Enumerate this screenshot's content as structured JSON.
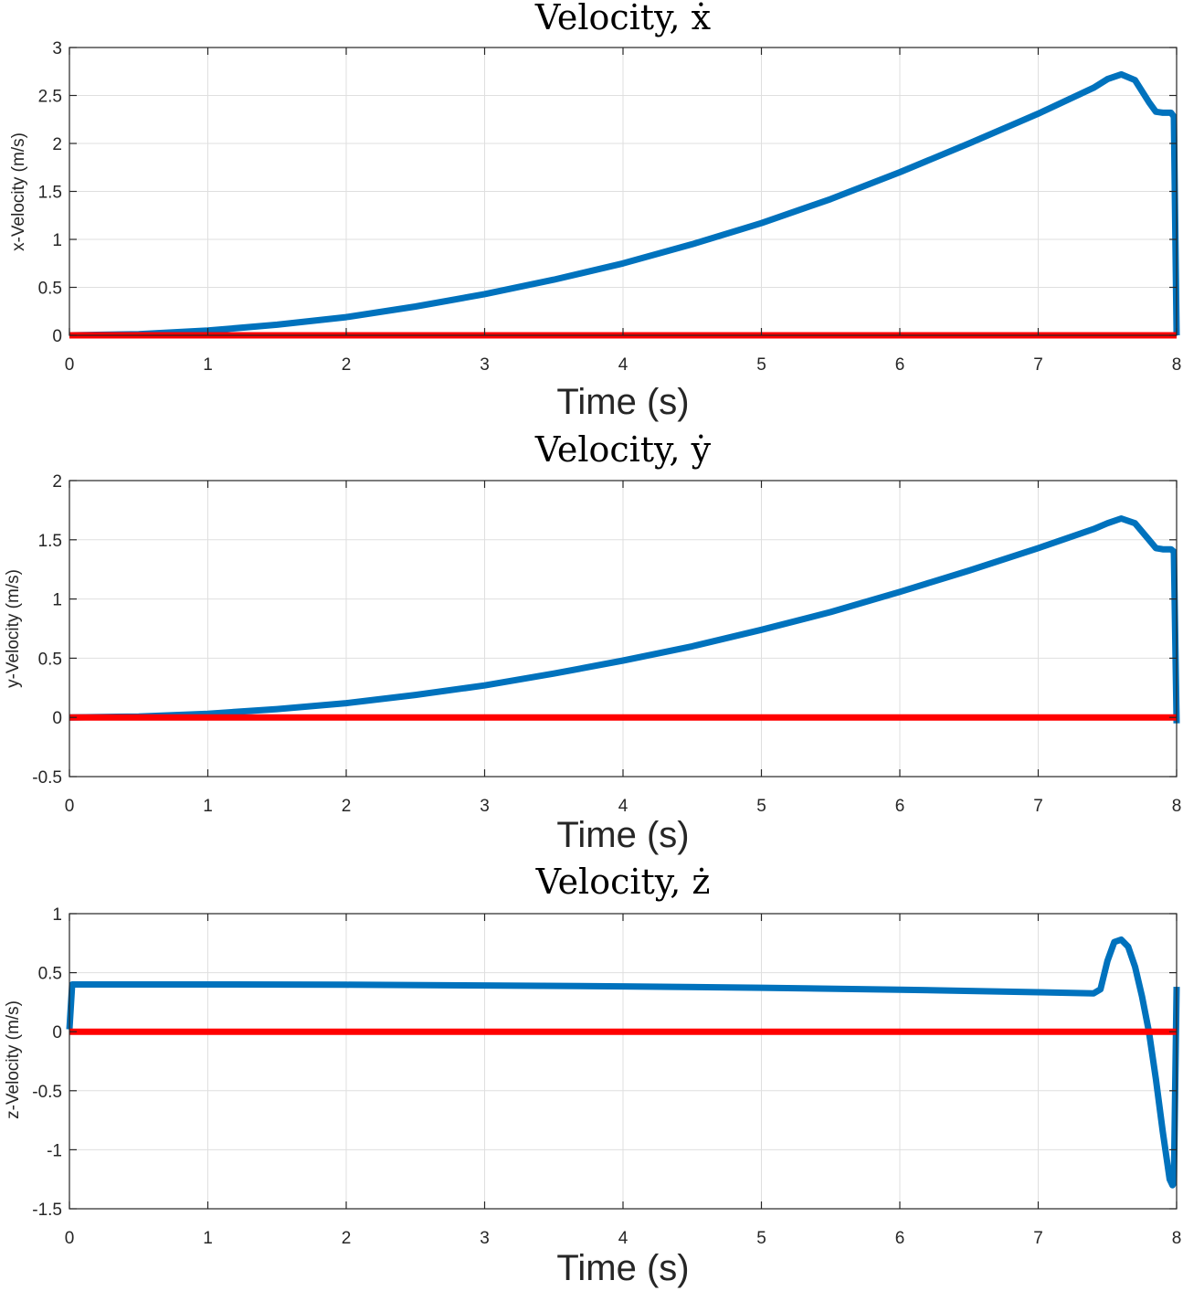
{
  "chart_data": [
    {
      "type": "line",
      "title": "Velocity, ẋ",
      "xlabel": "Time (s)",
      "ylabel": "x-Velocity (m/s)",
      "xlim": [
        0,
        8
      ],
      "ylim": [
        0,
        3
      ],
      "xticks": [
        0,
        1,
        2,
        3,
        4,
        5,
        6,
        7,
        8
      ],
      "yticks": [
        0,
        0.5,
        1,
        1.5,
        2,
        2.5,
        3
      ],
      "ytick_labels": [
        "0",
        "0.5",
        "1",
        "1.5",
        "2",
        "2.5",
        "3"
      ],
      "grid": true,
      "series": [
        {
          "color": "#0072bd",
          "x": [
            0,
            0.5,
            1,
            1.5,
            2,
            2.5,
            3,
            3.5,
            4,
            4.5,
            5,
            5.5,
            6,
            6.5,
            7,
            7.4,
            7.5,
            7.6,
            7.7,
            7.8,
            7.85,
            7.9,
            7.96,
            7.98,
            8.0
          ],
          "y": [
            0,
            0.012,
            0.05,
            0.11,
            0.19,
            0.3,
            0.43,
            0.58,
            0.75,
            0.95,
            1.17,
            1.42,
            1.7,
            2.0,
            2.31,
            2.58,
            2.67,
            2.72,
            2.66,
            2.43,
            2.33,
            2.32,
            2.32,
            2.28,
            0.0
          ]
        },
        {
          "color": "#ff0000",
          "x": [
            0,
            8
          ],
          "y": [
            0,
            0
          ]
        }
      ]
    },
    {
      "type": "line",
      "title": "Velocity, ẏ",
      "xlabel": "Time (s)",
      "ylabel": "y-Velocity (m/s)",
      "xlim": [
        0,
        8
      ],
      "ylim": [
        -0.5,
        2
      ],
      "xticks": [
        0,
        1,
        2,
        3,
        4,
        5,
        6,
        7,
        8
      ],
      "yticks": [
        -0.5,
        0,
        0.5,
        1,
        1.5,
        2
      ],
      "ytick_labels": [
        "-0.5",
        "0",
        "0.5",
        "1",
        "1.5",
        "2"
      ],
      "grid": true,
      "series": [
        {
          "color": "#0072bd",
          "x": [
            0,
            0.5,
            1,
            1.5,
            2,
            2.5,
            3,
            3.5,
            4,
            4.5,
            5,
            5.5,
            6,
            6.5,
            7,
            7.4,
            7.5,
            7.6,
            7.7,
            7.8,
            7.85,
            7.9,
            7.96,
            7.98,
            8.0
          ],
          "y": [
            0,
            0.008,
            0.031,
            0.07,
            0.12,
            0.19,
            0.27,
            0.37,
            0.48,
            0.6,
            0.74,
            0.89,
            1.06,
            1.24,
            1.43,
            1.59,
            1.64,
            1.68,
            1.64,
            1.5,
            1.43,
            1.42,
            1.42,
            1.4,
            -0.05
          ]
        },
        {
          "color": "#ff0000",
          "x": [
            0,
            8
          ],
          "y": [
            0,
            0
          ]
        }
      ]
    },
    {
      "type": "line",
      "title": "Velocity, ż",
      "xlabel": "Time (s)",
      "ylabel": "z-Velocity (m/s)",
      "xlim": [
        0,
        8
      ],
      "ylim": [
        -1.5,
        1
      ],
      "xticks": [
        0,
        1,
        2,
        3,
        4,
        5,
        6,
        7,
        8
      ],
      "yticks": [
        -1.5,
        -1,
        -0.5,
        0,
        0.5,
        1
      ],
      "ytick_labels": [
        "-1.5",
        "-1",
        "-0.5",
        "0",
        "0.5",
        "1"
      ],
      "grid": true,
      "series": [
        {
          "color": "#0072bd",
          "x": [
            0,
            0.02,
            0.05,
            1,
            2,
            3,
            4,
            5,
            6,
            7,
            7.4,
            7.45,
            7.5,
            7.55,
            7.6,
            7.65,
            7.7,
            7.75,
            7.8,
            7.85,
            7.9,
            7.95,
            7.97,
            7.98,
            8.0
          ],
          "y": [
            0.02,
            0.4,
            0.4,
            0.4,
            0.398,
            0.392,
            0.384,
            0.372,
            0.356,
            0.334,
            0.325,
            0.36,
            0.6,
            0.76,
            0.78,
            0.72,
            0.55,
            0.3,
            0.0,
            -0.4,
            -0.85,
            -1.25,
            -1.3,
            -1.28,
            0.38
          ]
        },
        {
          "color": "#ff0000",
          "x": [
            0,
            8
          ],
          "y": [
            0,
            0
          ]
        }
      ]
    }
  ]
}
